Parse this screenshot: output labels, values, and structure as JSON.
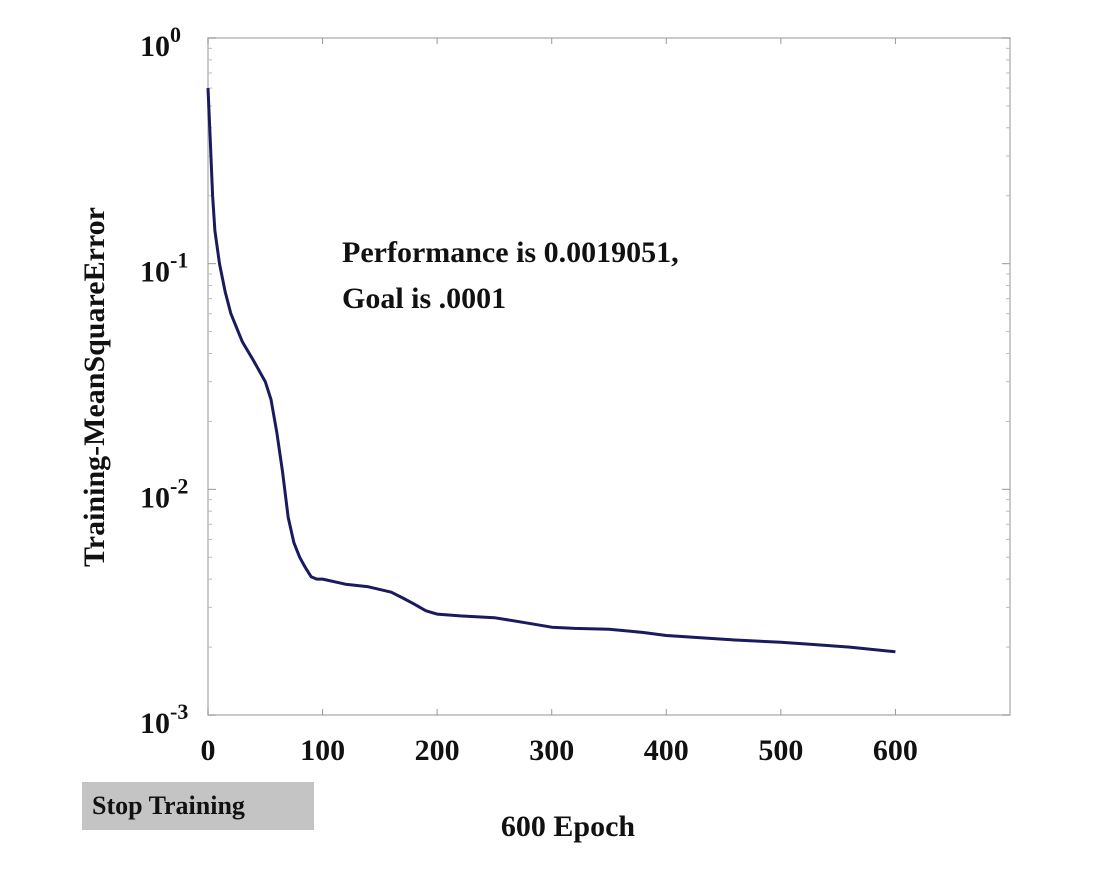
{
  "chart_data": {
    "type": "line",
    "xlabel": "600 Epoch",
    "ylabel": "Training-MeanSquareError",
    "y_scale": "log",
    "xlim": [
      0,
      700
    ],
    "ylim": [
      0.001,
      1
    ],
    "x_ticks": [
      0,
      100,
      200,
      300,
      400,
      500,
      600
    ],
    "x_tick_labels": [
      "0",
      "100",
      "200",
      "300",
      "400",
      "500",
      "600"
    ],
    "y_ticks": [
      {
        "value": 1,
        "base": "10",
        "exp": "0"
      },
      {
        "value": 0.1,
        "base": "10",
        "exp": "-1"
      },
      {
        "value": 0.01,
        "base": "10",
        "exp": "-2"
      },
      {
        "value": 0.001,
        "base": "10",
        "exp": "-3"
      }
    ],
    "annotation_lines": [
      "Performance is 0.0019051,",
      "Goal is .0001"
    ],
    "series": [
      {
        "color": "#1a1a5e",
        "x": [
          0,
          2,
          4,
          6,
          10,
          15,
          20,
          30,
          40,
          50,
          55,
          60,
          65,
          70,
          75,
          80,
          85,
          90,
          95,
          100,
          120,
          140,
          160,
          170,
          180,
          190,
          195,
          200,
          220,
          250,
          280,
          300,
          320,
          350,
          380,
          400,
          430,
          460,
          500,
          530,
          560,
          600
        ],
        "y": [
          0.6,
          0.35,
          0.2,
          0.14,
          0.1,
          0.075,
          0.06,
          0.045,
          0.037,
          0.03,
          0.025,
          0.018,
          0.012,
          0.0075,
          0.0058,
          0.005,
          0.0045,
          0.0041,
          0.004,
          0.004,
          0.0038,
          0.0037,
          0.0035,
          0.0033,
          0.0031,
          0.0029,
          0.00285,
          0.0028,
          0.00275,
          0.0027,
          0.00255,
          0.00245,
          0.00242,
          0.0024,
          0.00232,
          0.00225,
          0.0022,
          0.00215,
          0.0021,
          0.00205,
          0.002,
          0.0019051
        ]
      }
    ]
  },
  "controls": {
    "stop_training_label": "Stop Training"
  }
}
